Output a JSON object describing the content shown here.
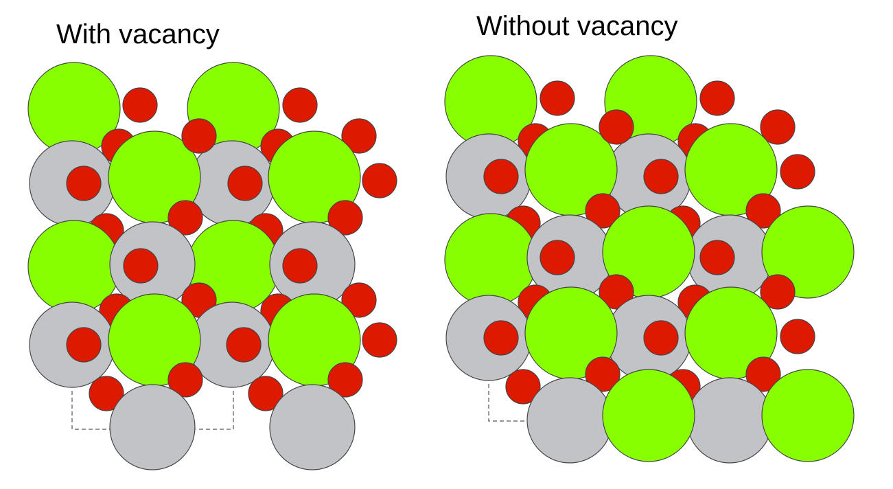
{
  "panels": [
    {
      "title": "With vacancy"
    },
    {
      "title": "Without vacancy"
    }
  ],
  "colors": {
    "green_atom": "#88ff00",
    "gray_atom": "#c2c3c7",
    "red_atom": "#dd1a00",
    "outline": "#444444",
    "background": "#ffffff"
  }
}
